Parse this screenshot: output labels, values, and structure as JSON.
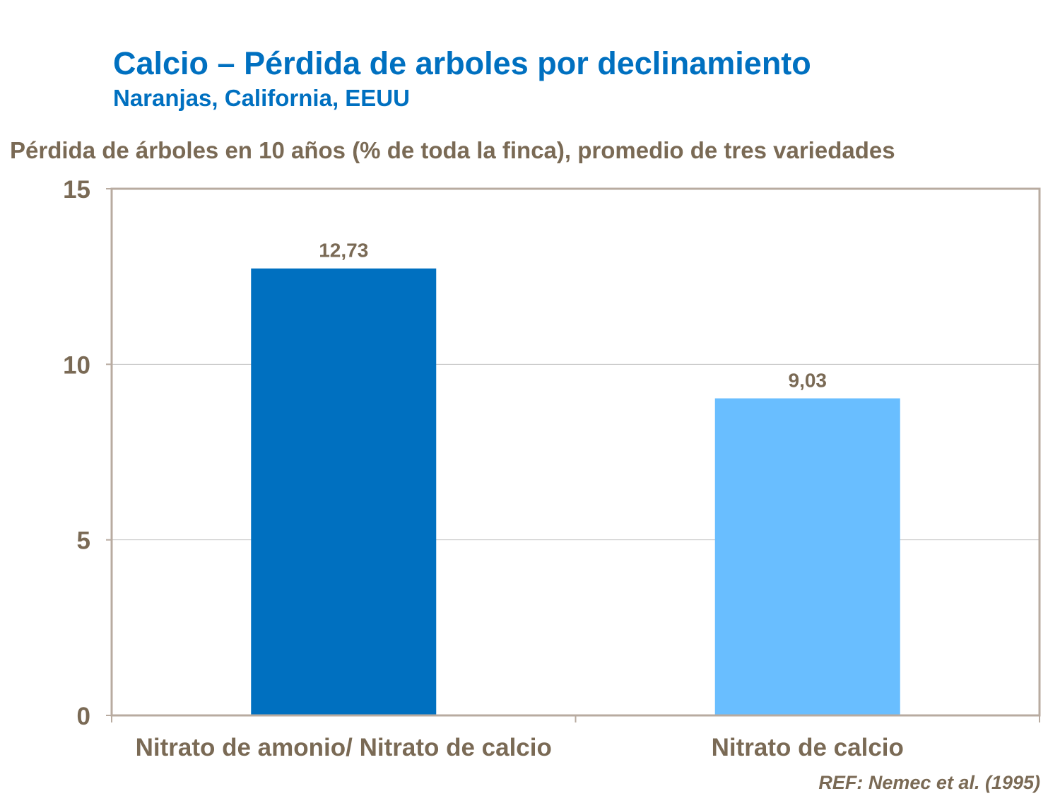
{
  "title": "Calcio – Pérdida de arboles por declinamiento",
  "subtitle": "Naranjas, California, EEUU",
  "reference": "REF: Nemec et al. (1995)",
  "chart_data": {
    "type": "bar",
    "ylabel": "Pérdida de árboles en 10 años (% de toda la finca), promedio de tres variedades",
    "categories": [
      "Nitrato de amonio/ Nitrato de calcio",
      "Nitrato de calcio"
    ],
    "values": [
      12.73,
      9.03
    ],
    "data_labels": [
      "12,73",
      "9,03"
    ],
    "bar_colors": [
      "#0070C0",
      "#69BEFF"
    ],
    "ylim": [
      0,
      15
    ],
    "yticks": [
      0,
      5,
      10,
      15
    ],
    "grid": true,
    "legend": "none"
  }
}
